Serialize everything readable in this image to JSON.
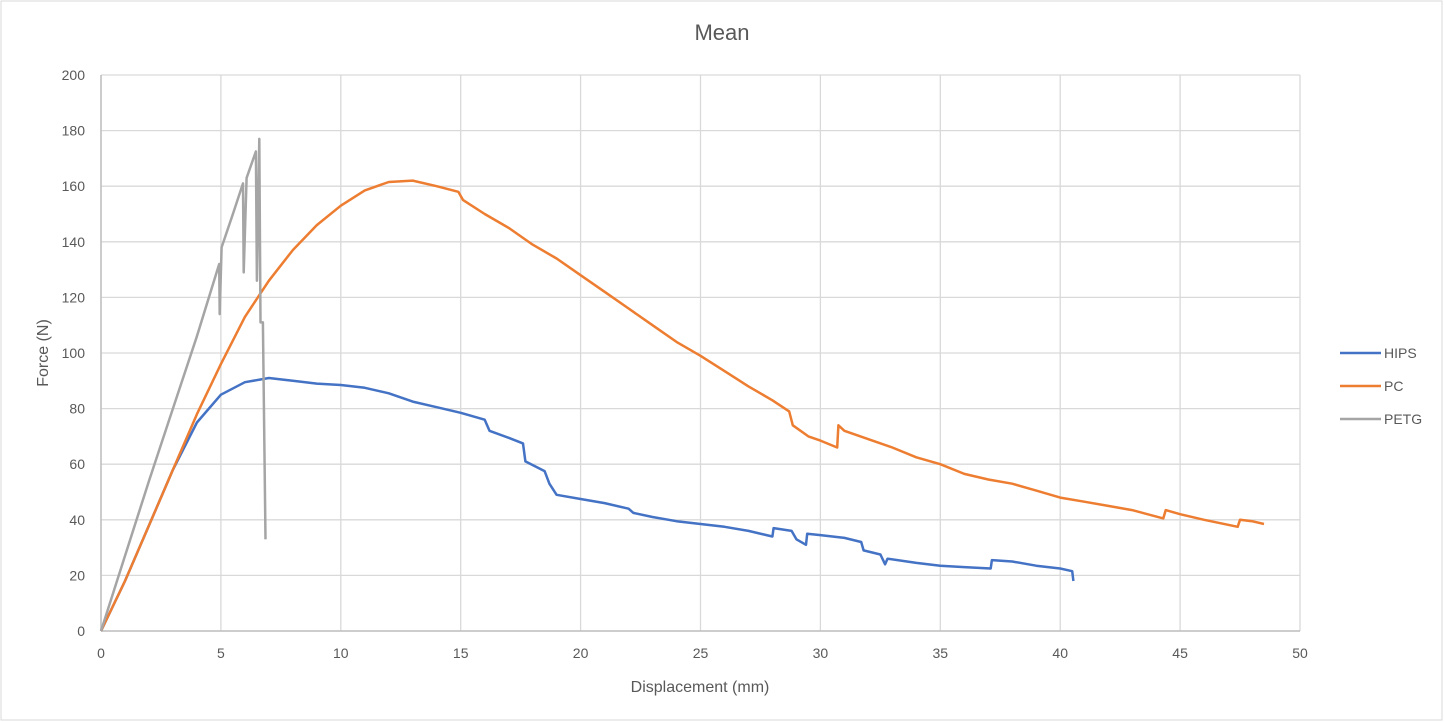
{
  "chart_data": {
    "type": "line",
    "title": "Mean",
    "xlabel": "Displacement (mm)",
    "ylabel": "Force (N)",
    "xlim": [
      0,
      50
    ],
    "ylim": [
      0,
      200
    ],
    "xticks": [
      0,
      5,
      10,
      15,
      20,
      25,
      30,
      35,
      40,
      45,
      50
    ],
    "yticks": [
      0,
      20,
      40,
      60,
      80,
      100,
      120,
      140,
      160,
      180,
      200
    ],
    "grid": true,
    "legend_position": "right",
    "series": [
      {
        "name": "HIPS",
        "color": "#4472C4",
        "points": [
          [
            0,
            0
          ],
          [
            1,
            18
          ],
          [
            2,
            38
          ],
          [
            3,
            58
          ],
          [
            4,
            75
          ],
          [
            5,
            85
          ],
          [
            6,
            89.5
          ],
          [
            7,
            91
          ],
          [
            8,
            90
          ],
          [
            9,
            89
          ],
          [
            10,
            88.5
          ],
          [
            11,
            87.5
          ],
          [
            12,
            85.5
          ],
          [
            13,
            82.5
          ],
          [
            14,
            80.5
          ],
          [
            15,
            78.5
          ],
          [
            16,
            76
          ],
          [
            16.2,
            72
          ],
          [
            17,
            69.5
          ],
          [
            17.6,
            67.5
          ],
          [
            17.7,
            61
          ],
          [
            18.5,
            57.5
          ],
          [
            18.7,
            53
          ],
          [
            19,
            49
          ],
          [
            20,
            47.5
          ],
          [
            21,
            46
          ],
          [
            22,
            44
          ],
          [
            22.2,
            42.5
          ],
          [
            23,
            41
          ],
          [
            24,
            39.5
          ],
          [
            25,
            38.5
          ],
          [
            26,
            37.5
          ],
          [
            27,
            36
          ],
          [
            28,
            34
          ],
          [
            28.05,
            37
          ],
          [
            28.8,
            36
          ],
          [
            29,
            33
          ],
          [
            29.4,
            31
          ],
          [
            29.45,
            35
          ],
          [
            30,
            34.5
          ],
          [
            31,
            33.5
          ],
          [
            31.7,
            32
          ],
          [
            31.8,
            29
          ],
          [
            32.5,
            27.5
          ],
          [
            32.7,
            24
          ],
          [
            32.8,
            26
          ],
          [
            34,
            24.5
          ],
          [
            35,
            23.5
          ],
          [
            36,
            23
          ],
          [
            37.1,
            22.5
          ],
          [
            37.15,
            25.5
          ],
          [
            38,
            25
          ],
          [
            39,
            23.5
          ],
          [
            40,
            22.5
          ],
          [
            40.5,
            21.5
          ],
          [
            40.55,
            18
          ]
        ]
      },
      {
        "name": "PC",
        "color": "#ED7D31",
        "points": [
          [
            0,
            0
          ],
          [
            1,
            18
          ],
          [
            2,
            38
          ],
          [
            3,
            58
          ],
          [
            4,
            78
          ],
          [
            5,
            96
          ],
          [
            6,
            113
          ],
          [
            7,
            126
          ],
          [
            8,
            137
          ],
          [
            9,
            146
          ],
          [
            10,
            153
          ],
          [
            11,
            158.5
          ],
          [
            12,
            161.5
          ],
          [
            13,
            162
          ],
          [
            14,
            160
          ],
          [
            14.9,
            158
          ],
          [
            15.1,
            155
          ],
          [
            16,
            150
          ],
          [
            17,
            145
          ],
          [
            18,
            139
          ],
          [
            19,
            134
          ],
          [
            20,
            128
          ],
          [
            21,
            122
          ],
          [
            22,
            116
          ],
          [
            23,
            110
          ],
          [
            24,
            104
          ],
          [
            25,
            99
          ],
          [
            26,
            93.5
          ],
          [
            27,
            88
          ],
          [
            28,
            83
          ],
          [
            28.7,
            79
          ],
          [
            28.85,
            74
          ],
          [
            29.5,
            70
          ],
          [
            30,
            68.5
          ],
          [
            30.7,
            66
          ],
          [
            30.75,
            74
          ],
          [
            31,
            72
          ],
          [
            32,
            69
          ],
          [
            33,
            66
          ],
          [
            34,
            62.5
          ],
          [
            35,
            60
          ],
          [
            36,
            56.5
          ],
          [
            37,
            54.5
          ],
          [
            38,
            53
          ],
          [
            39,
            50.5
          ],
          [
            40,
            48
          ],
          [
            41,
            46.5
          ],
          [
            42,
            45
          ],
          [
            43,
            43.5
          ],
          [
            44.3,
            40.5
          ],
          [
            44.4,
            43.5
          ],
          [
            45,
            42
          ],
          [
            46,
            40
          ],
          [
            47.4,
            37.5
          ],
          [
            47.5,
            40
          ],
          [
            48,
            39.5
          ],
          [
            48.5,
            38.5
          ]
        ]
      },
      {
        "name": "PETG",
        "color": "#A5A5A5",
        "points": [
          [
            0,
            0
          ],
          [
            1,
            27
          ],
          [
            2,
            54
          ],
          [
            3,
            80
          ],
          [
            4,
            106
          ],
          [
            4.93,
            132
          ],
          [
            4.95,
            114
          ],
          [
            5.03,
            138
          ],
          [
            5.5,
            150
          ],
          [
            5.92,
            161
          ],
          [
            5.95,
            129
          ],
          [
            6.07,
            163
          ],
          [
            6.46,
            172.5
          ],
          [
            6.5,
            126
          ],
          [
            6.6,
            177
          ],
          [
            6.65,
            111
          ],
          [
            6.75,
            111
          ],
          [
            6.86,
            33
          ]
        ]
      }
    ]
  }
}
